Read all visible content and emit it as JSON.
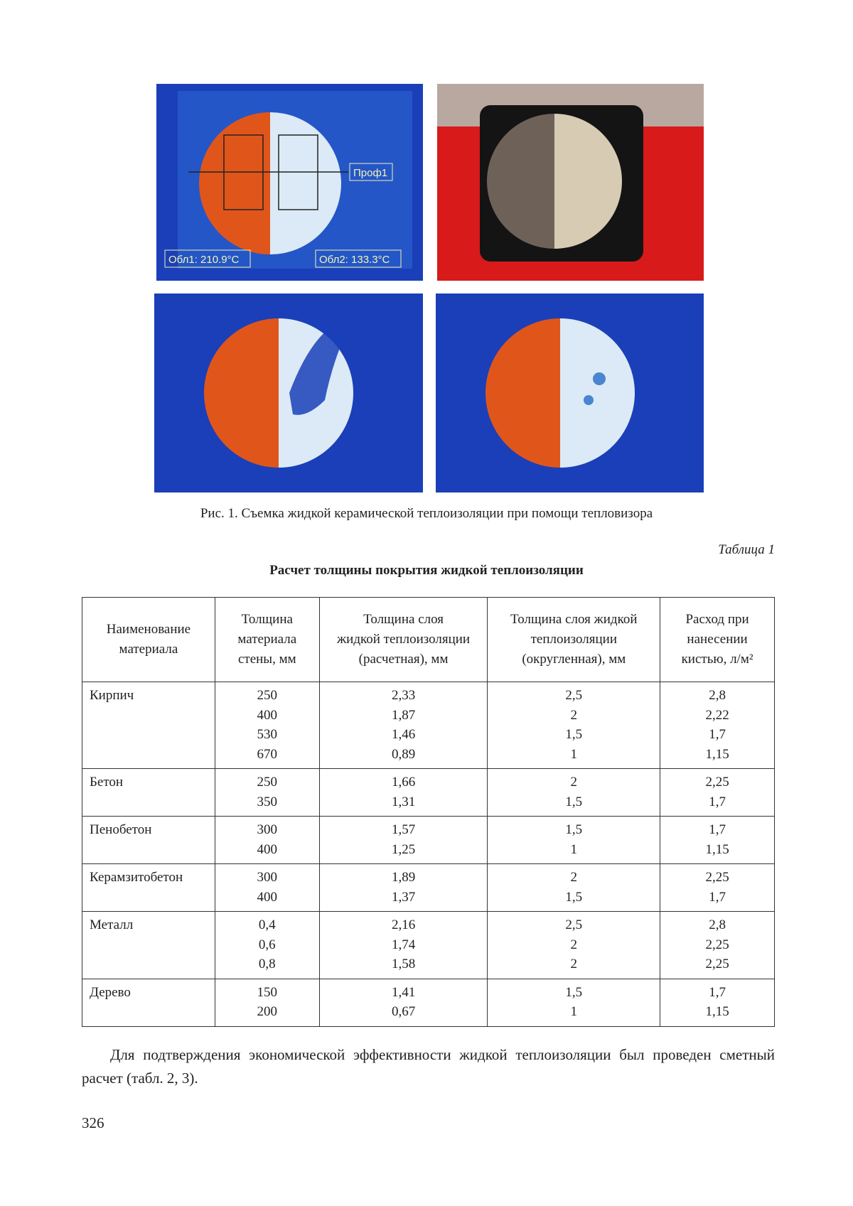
{
  "figure": {
    "overlays": {
      "profile": "Проф1",
      "area1": "Обл1: 210.9°C",
      "area2": "Обл2: 133.3°C"
    },
    "caption": "Рис. 1. Съемка жидкой керамической теплоизоляции при помощи тепловизора"
  },
  "table": {
    "label": "Таблица 1",
    "title": "Расчет толщины покрытия жидкой теплоизоляции",
    "header": [
      [
        "Наименование",
        "материала"
      ],
      [
        "Толщина",
        "материала",
        "стены, мм"
      ],
      [
        "Толщина слоя",
        "жидкой теплоизоляции",
        "(расчетная), мм"
      ],
      [
        "Толщина слоя жидкой",
        "теплоизоляции",
        "(округленная), мм"
      ],
      [
        "Расход при",
        "нанесении",
        "кистью, л/м²"
      ]
    ],
    "rows": [
      {
        "material": "Кирпич",
        "values": [
          [
            "250",
            "400",
            "530",
            "670"
          ],
          [
            "2,33",
            "1,87",
            "1,46",
            "0,89"
          ],
          [
            "2,5",
            "2",
            "1,5",
            "1"
          ],
          [
            "2,8",
            "2,22",
            "1,7",
            "1,15"
          ]
        ]
      },
      {
        "material": "Бетон",
        "values": [
          [
            "250",
            "350"
          ],
          [
            "1,66",
            "1,31"
          ],
          [
            "2",
            "1,5"
          ],
          [
            "2,25",
            "1,7"
          ]
        ]
      },
      {
        "material": "Пенобетон",
        "values": [
          [
            "300",
            "400"
          ],
          [
            "1,57",
            "1,25"
          ],
          [
            "1,5",
            "1"
          ],
          [
            "1,7",
            "1,15"
          ]
        ]
      },
      {
        "material": "Керамзитобетон",
        "values": [
          [
            "300",
            "400"
          ],
          [
            "1,89",
            "1,37"
          ],
          [
            "2",
            "1,5"
          ],
          [
            "2,25",
            "1,7"
          ]
        ]
      },
      {
        "material": "Металл",
        "values": [
          [
            "0,4",
            "0,6",
            "0,8"
          ],
          [
            "2,16",
            "1,74",
            "1,58"
          ],
          [
            "2,5",
            "2",
            "2"
          ],
          [
            "2,8",
            "2,25",
            "2,25"
          ]
        ]
      },
      {
        "material": "Дерево",
        "values": [
          [
            "150",
            "200"
          ],
          [
            "1,41",
            "0,67"
          ],
          [
            "1,5",
            "1"
          ],
          [
            "1,7",
            "1,15"
          ]
        ]
      }
    ]
  },
  "paragraph": "Для подтверждения экономической эффективности жидкой теплоизоляции был проведен сметный расчет (табл. 2, 3).",
  "page_number": "326"
}
